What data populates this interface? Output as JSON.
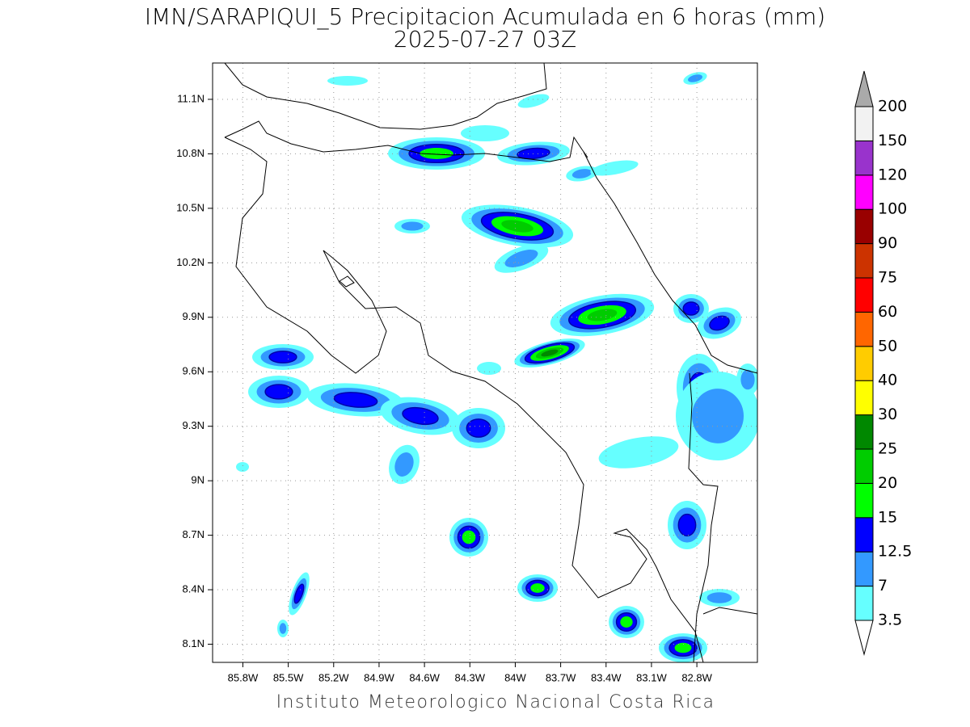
{
  "title": "IMN/SARAPIQUI_5 Precipitacion Acumulada en 6 horas (mm)",
  "subtitle": "2025-07-27 03Z",
  "footer": "Instituto Meteorologico Nacional Costa Rica",
  "map": {
    "xlim": [
      -86.0,
      -82.4
    ],
    "ylim": [
      8.0,
      11.3
    ],
    "xticks": [
      {
        "value": -85.8,
        "label": "85.8W"
      },
      {
        "value": -85.5,
        "label": "85.5W"
      },
      {
        "value": -85.2,
        "label": "85.2W"
      },
      {
        "value": -84.9,
        "label": "84.9W"
      },
      {
        "value": -84.6,
        "label": "84.6W"
      },
      {
        "value": -84.3,
        "label": "84.3W"
      },
      {
        "value": -84.0,
        "label": "84W"
      },
      {
        "value": -83.7,
        "label": "83.7W"
      },
      {
        "value": -83.4,
        "label": "83.4W"
      },
      {
        "value": -83.1,
        "label": "83.1W"
      },
      {
        "value": -82.8,
        "label": "82.8W"
      }
    ],
    "yticks": [
      {
        "value": 8.1,
        "label": "8.1N"
      },
      {
        "value": 8.4,
        "label": "8.4N"
      },
      {
        "value": 8.7,
        "label": "8.7N"
      },
      {
        "value": 9.0,
        "label": "9N"
      },
      {
        "value": 9.3,
        "label": "9.3N"
      },
      {
        "value": 9.6,
        "label": "9.6N"
      },
      {
        "value": 9.9,
        "label": "9.9N"
      },
      {
        "value": 10.2,
        "label": "10.2N"
      },
      {
        "value": 10.5,
        "label": "10.5N"
      },
      {
        "value": 10.8,
        "label": "10.8N"
      },
      {
        "value": 11.1,
        "label": "11.1N"
      }
    ],
    "grid": true
  },
  "colorbar": {
    "levels": [
      3.5,
      7,
      12.5,
      15,
      20,
      25,
      30,
      40,
      50,
      60,
      75,
      90,
      100,
      120,
      150,
      200
    ],
    "colors": [
      "#ffffff",
      "#66ffff",
      "#3399ff",
      "#0000ff",
      "#00ff00",
      "#00cc00",
      "#008800",
      "#ffff00",
      "#ffcc00",
      "#ff6600",
      "#ff0000",
      "#cc3300",
      "#990000",
      "#ff00ff",
      "#9933cc",
      "#f2f2f2",
      "#aaaaaa"
    ]
  }
}
